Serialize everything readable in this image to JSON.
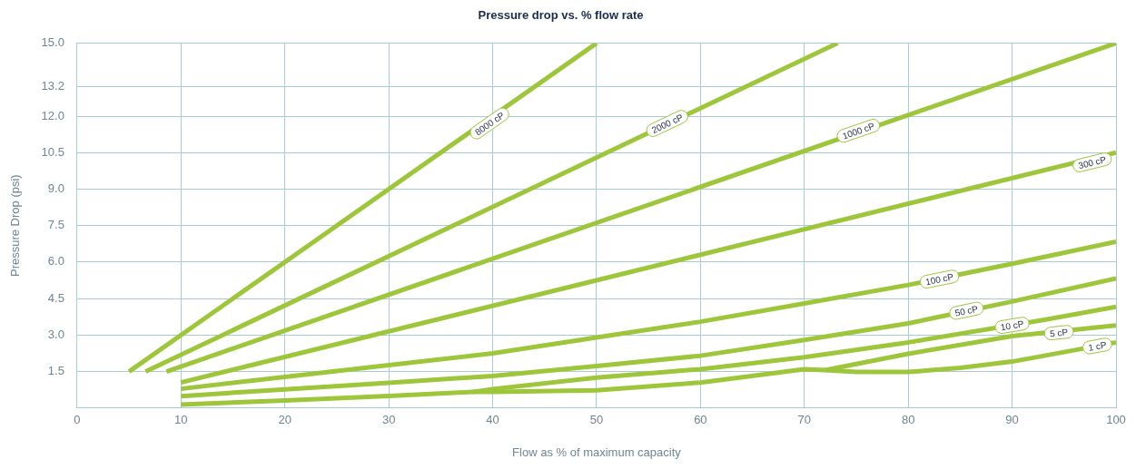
{
  "chart_data": {
    "type": "line",
    "title": "Pressure drop vs. % flow rate",
    "xlabel": "Flow as % of maximum capacity",
    "ylabel": "Pressure Drop (psi)",
    "xlim": [
      0,
      100
    ],
    "xticks": [
      0,
      10,
      20,
      30,
      40,
      50,
      60,
      70,
      80,
      90,
      100
    ],
    "ylim": [
      0,
      15
    ],
    "yticks": [
      1.5,
      {
        "value": 3,
        "label": "3.0"
      },
      4.5,
      {
        "value": 6,
        "label": "6.0"
      },
      7.5,
      {
        "value": 9,
        "label": "9.0"
      },
      10.5,
      {
        "value": 12,
        "label": "12.0"
      },
      13.2,
      {
        "value": 15,
        "label": "15.0"
      }
    ],
    "grid": true,
    "legend": false,
    "marker": "none",
    "line_style": "solid",
    "series": [
      {
        "color": "#9dc63b",
        "x": [
          5,
          50
        ],
        "values": [
          1.5,
          15
        ]
      },
      {
        "color": "#9dc63b",
        "x": [
          6.6,
          73.2
        ],
        "values": [
          1.5,
          15
        ]
      },
      {
        "color": "#9dc63b",
        "x": [
          8.6,
          100
        ],
        "values": [
          1.5,
          15
        ]
      },
      {
        "color": "#9dc63b",
        "x": [
          10,
          100
        ],
        "values": [
          1.05,
          10.5
        ]
      },
      {
        "color": "#9dc63b",
        "x": [
          10,
          20,
          30,
          40,
          50,
          60,
          70,
          80,
          90,
          100
        ],
        "values": [
          0.79,
          1.28,
          1.76,
          2.25,
          2.9,
          3.55,
          4.3,
          5.06,
          5.93,
          6.84
        ]
      },
      {
        "color": "#9dc63b",
        "x": [
          10,
          20,
          30,
          40,
          50,
          60,
          70,
          80,
          90,
          100
        ],
        "values": [
          0.49,
          0.77,
          1.04,
          1.32,
          1.73,
          2.15,
          2.8,
          3.48,
          4.38,
          5.33
        ]
      },
      {
        "color": "#9dc63b",
        "x": [
          10,
          20,
          30,
          38,
          40,
          50,
          60,
          70,
          80,
          93,
          100
        ],
        "values": [
          0.14,
          0.31,
          0.5,
          0.66,
          0.78,
          1.25,
          1.6,
          2.09,
          2.7,
          3.62,
          4.16
        ]
      },
      {
        "color": "#9dc63b",
        "x": [
          38,
          40,
          50,
          60,
          70,
          72,
          80,
          90,
          100
        ],
        "values": [
          0.66,
          0.66,
          0.73,
          1.05,
          1.6,
          1.56,
          2.23,
          2.96,
          3.4
        ]
      },
      {
        "color": "#9dc63b",
        "x": [
          72,
          75,
          80,
          85,
          90,
          95,
          100
        ],
        "values": [
          1.56,
          1.48,
          1.48,
          1.65,
          1.91,
          2.3,
          2.7
        ]
      }
    ],
    "annotations": [
      {
        "text": "8000 cP",
        "x": 39.7,
        "y": 11.7
      },
      {
        "text": "2000 cP",
        "x": 56.8,
        "y": 11.7
      },
      {
        "text": "1000 cP",
        "x": 75.2,
        "y": 11.4
      },
      {
        "text": "300 cP",
        "x": 97.7,
        "y": 10.1
      },
      {
        "text": "100 cP",
        "x": 83,
        "y": 5.3
      },
      {
        "text": "50 cP",
        "x": 85.6,
        "y": 4.0
      },
      {
        "text": "10 cP",
        "x": 90,
        "y": 3.4
      },
      {
        "text": "5 cP",
        "x": 94.5,
        "y": 3.1
      },
      {
        "text": "1 cP",
        "x": 98.2,
        "y": 2.55
      }
    ]
  }
}
